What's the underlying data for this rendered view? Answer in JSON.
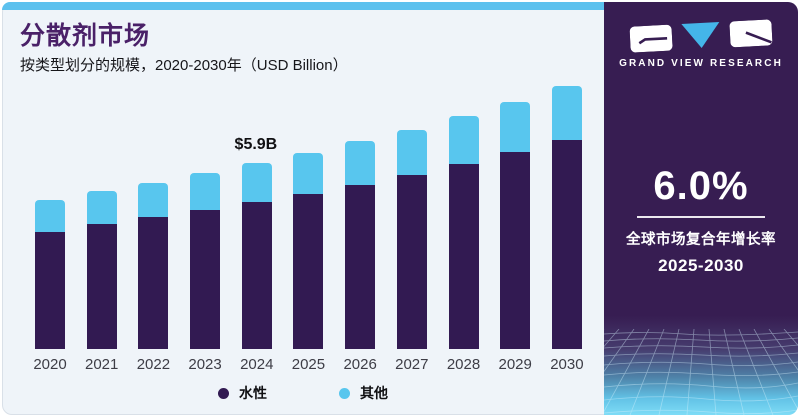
{
  "header": {
    "title": "分散剂市场",
    "subtitle": "按类型划分的规模，2020-2030年（USD Billion）"
  },
  "chart_data": {
    "type": "bar",
    "stacked": true,
    "unit": "USD Billion",
    "categories": [
      "2020",
      "2021",
      "2022",
      "2023",
      "2024",
      "2025",
      "2026",
      "2027",
      "2028",
      "2029",
      "2030"
    ],
    "series": [
      {
        "name": "水性",
        "color": "#321a52",
        "values": [
          3.71,
          3.94,
          4.18,
          4.39,
          4.65,
          4.89,
          5.19,
          5.5,
          5.85,
          6.22,
          6.61
        ]
      },
      {
        "name": "其他",
        "color": "#58c6ee",
        "values": [
          1.02,
          1.07,
          1.07,
          1.17,
          1.25,
          1.32,
          1.39,
          1.42,
          1.53,
          1.61,
          1.71
        ]
      }
    ],
    "totals": [
      4.73,
      5.01,
      5.25,
      5.56,
      5.9,
      6.21,
      6.58,
      6.92,
      7.38,
      7.83,
      8.32
    ],
    "annotation": {
      "text": "$5.9B",
      "category": "2024"
    },
    "ylim": [
      0,
      8.32
    ],
    "grid": false,
    "legend_position": "bottom"
  },
  "panel": {
    "brand": "GRAND VIEW RESEARCH",
    "cagr_value": "6.0%",
    "cagr_label": "全球市场复合年增长率",
    "cagr_period": "2025-2030",
    "background_color": "#371d52",
    "logo_triangle_color": "#44b5e9"
  },
  "colors": {
    "accent_strip": "#5cc1ee",
    "card_background": "#eff4f9",
    "title_color": "#4a2168"
  }
}
